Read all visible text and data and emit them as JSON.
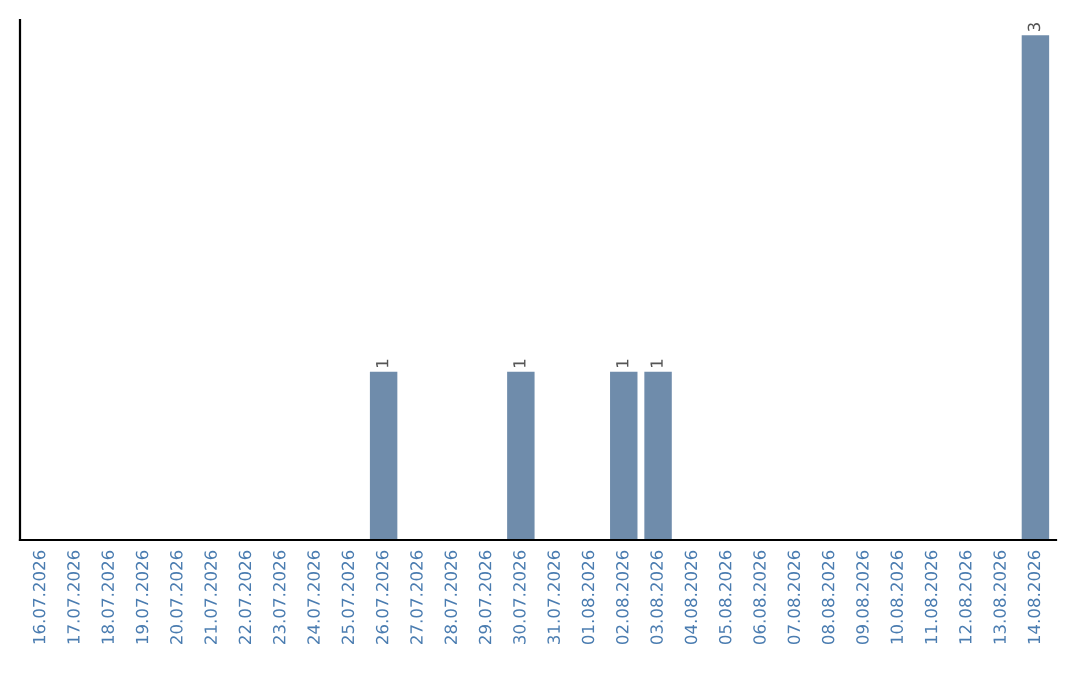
{
  "chart_data": {
    "type": "bar",
    "categories": [
      "16.07.2026",
      "17.07.2026",
      "18.07.2026",
      "19.07.2026",
      "20.07.2026",
      "21.07.2026",
      "22.07.2026",
      "23.07.2026",
      "24.07.2026",
      "25.07.2026",
      "26.07.2026",
      "27.07.2026",
      "28.07.2026",
      "29.07.2026",
      "30.07.2026",
      "31.07.2026",
      "01.08.2026",
      "02.08.2026",
      "03.08.2026",
      "04.08.2026",
      "05.08.2026",
      "06.08.2026",
      "07.08.2026",
      "08.08.2026",
      "09.08.2026",
      "10.08.2026",
      "11.08.2026",
      "12.08.2026",
      "13.08.2026",
      "14.08.2026"
    ],
    "values": [
      0,
      0,
      0,
      0,
      0,
      0,
      0,
      0,
      0,
      0,
      1,
      0,
      0,
      0,
      1,
      0,
      0,
      1,
      1,
      0,
      0,
      0,
      0,
      0,
      0,
      0,
      0,
      0,
      0,
      3
    ],
    "color": "#6f8cab",
    "value_labels": [
      null,
      null,
      null,
      null,
      null,
      null,
      null,
      null,
      null,
      null,
      "1",
      null,
      null,
      null,
      "1",
      null,
      null,
      "1",
      "1",
      null,
      null,
      null,
      null,
      null,
      null,
      null,
      null,
      null,
      null,
      "3"
    ],
    "tick_labels": "x",
    "grid": false
  }
}
